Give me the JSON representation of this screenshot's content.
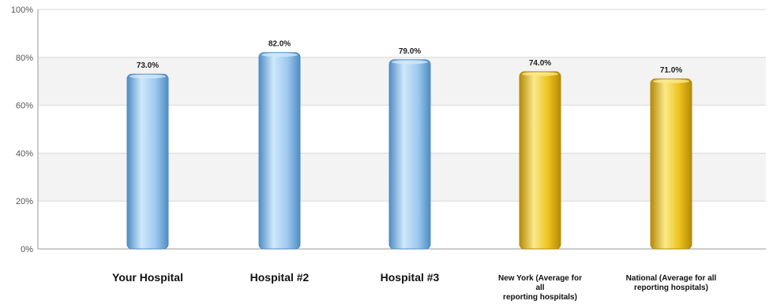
{
  "chart_data": {
    "type": "bar",
    "categories": [
      "Your Hospital",
      "Hospital #2",
      "Hospital #3",
      "New York (Average for all reporting hospitals)",
      "National (Average for all reporting hospitals)"
    ],
    "category_label_lines": [
      [
        "Your Hospital"
      ],
      [
        "Hospital #2"
      ],
      [
        "Hospital #3"
      ],
      [
        "New York (Average for",
        "all",
        "reporting hospitals)"
      ],
      [
        "National (Average for all",
        "reporting hospitals)"
      ]
    ],
    "values": [
      73.0,
      82.0,
      79.0,
      74.0,
      71.0
    ],
    "data_labels": [
      "73.0%",
      "82.0%",
      "79.0%",
      "74.0%",
      "71.0%"
    ],
    "bar_colors": [
      "blue",
      "blue",
      "blue",
      "gold",
      "gold"
    ],
    "ylim": [
      0,
      100
    ],
    "yticks": [
      0,
      20,
      40,
      60,
      80,
      100
    ],
    "ytick_labels": [
      "0%",
      "20%",
      "40%",
      "60%",
      "80%",
      "100%"
    ],
    "grid": true,
    "legend": "none",
    "title": "",
    "xlabel": "",
    "ylabel": ""
  },
  "colors": {
    "blue_light": "#cfe8fb",
    "blue_mid": "#9cc8ee",
    "blue_dark": "#4f8cc4",
    "gold_light": "#fbe98a",
    "gold_mid": "#ecc21c",
    "gold_dark": "#b48a08",
    "band": "#f3f3f3",
    "grid": "#d8d8d8"
  }
}
